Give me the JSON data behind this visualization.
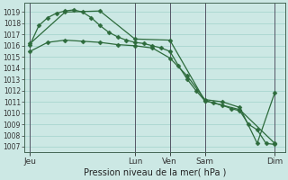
{
  "bg_color": "#cce8e4",
  "grid_color": "#a8d5cf",
  "line_color": "#2d6b3c",
  "ylabel": "Pression niveau de la mer( hPa )",
  "ylim": [
    1006.5,
    1019.8
  ],
  "yticks": [
    1007,
    1008,
    1009,
    1010,
    1011,
    1012,
    1013,
    1014,
    1015,
    1016,
    1017,
    1018,
    1019
  ],
  "x_day_labels": [
    "Jeu",
    "Lun",
    "Ven",
    "Sam",
    "Dim"
  ],
  "x_day_positions": [
    0,
    72,
    96,
    120,
    168
  ],
  "xlim": [
    -4,
    175
  ],
  "line1_x": [
    0,
    6,
    12,
    18,
    24,
    30,
    36,
    42,
    48,
    54,
    60,
    66,
    72,
    78,
    84,
    90,
    96,
    102,
    108,
    114,
    120,
    126,
    132,
    138,
    144,
    150,
    156,
    162,
    168
  ],
  "line1_y": [
    1016.1,
    1017.8,
    1018.5,
    1018.9,
    1019.1,
    1019.2,
    1019.0,
    1018.5,
    1017.8,
    1017.2,
    1016.8,
    1016.5,
    1016.3,
    1016.2,
    1016.0,
    1015.8,
    1015.5,
    1014.2,
    1013.0,
    1012.0,
    1011.1,
    1010.9,
    1010.7,
    1010.4,
    1010.2,
    1009.0,
    1008.5,
    1007.3,
    1007.2
  ],
  "line2_x": [
    0,
    12,
    24,
    36,
    48,
    60,
    72,
    84,
    96,
    108,
    120,
    132,
    144,
    156,
    168
  ],
  "line2_y": [
    1015.5,
    1016.3,
    1016.5,
    1016.4,
    1016.3,
    1016.1,
    1016.0,
    1015.8,
    1014.9,
    1013.3,
    1011.2,
    1011.0,
    1010.5,
    1007.3,
    1011.8
  ],
  "line3_x": [
    0,
    24,
    48,
    72,
    96,
    120,
    144,
    168
  ],
  "line3_y": [
    1016.2,
    1019.0,
    1019.1,
    1016.6,
    1016.5,
    1011.1,
    1010.3,
    1007.3
  ]
}
